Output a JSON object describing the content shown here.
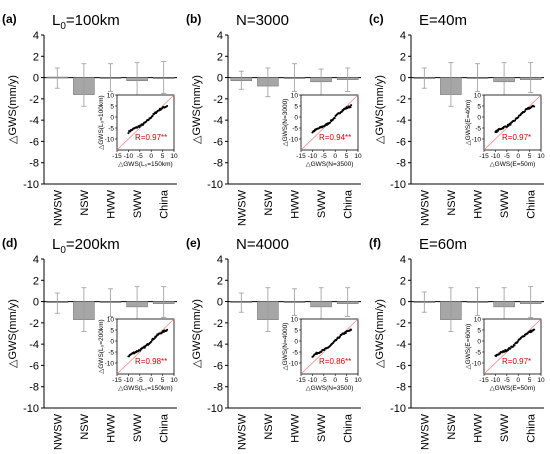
{
  "chart_data": [
    {
      "type": "bar",
      "panel_label": "(a)",
      "title": "L0=100km",
      "title_main": "L",
      "title_sub": "0",
      "title_rest": "=100km",
      "ylabel": "△GWS(mm/y)",
      "ylim": [
        -10,
        4
      ],
      "yticks": [
        -10,
        -8,
        -6,
        -4,
        -2,
        0,
        2,
        4
      ],
      "categories": [
        "NWSW",
        "NSW",
        "HWW",
        "SWW",
        "China"
      ],
      "values": [
        0.05,
        -1.6,
        -0.05,
        -0.3,
        -0.1
      ],
      "error_low": [
        -1.0,
        -2.7,
        -1.3,
        -2.5,
        -1.5
      ],
      "error_high": [
        0.9,
        1.3,
        1.3,
        1.4,
        1.5
      ],
      "inset": {
        "type": "scatter",
        "xlabel": "△GWS(L₀=150km)",
        "ylabel": "△GWS(L₀=100km)",
        "xticks": [
          -15,
          -10,
          -5,
          0,
          5,
          10
        ],
        "yticks": [
          -10,
          -5,
          0,
          5,
          10
        ],
        "xlim": [
          -15,
          10
        ],
        "ylim": [
          -15,
          10
        ],
        "annotation": "R=0.97**"
      }
    },
    {
      "type": "bar",
      "panel_label": "(b)",
      "title": "N=3000",
      "title_main": "N=3000",
      "title_sub": "",
      "title_rest": "",
      "ylabel": "△GWS(mm/y)",
      "ylim": [
        -10,
        4
      ],
      "yticks": [
        -10,
        -8,
        -6,
        -4,
        -2,
        0,
        2,
        4
      ],
      "categories": [
        "NWSW",
        "NSW",
        "HWW",
        "SWW",
        "China"
      ],
      "values": [
        -0.3,
        -0.8,
        -0.05,
        -0.4,
        -0.2
      ],
      "error_low": [
        -1.1,
        -1.8,
        -1.3,
        -2.8,
        -1.3
      ],
      "error_high": [
        0.6,
        0.9,
        1.3,
        0.8,
        0.9
      ],
      "inset": {
        "type": "scatter",
        "xlabel": "△GWS(N=3500)",
        "ylabel": "△GWS(N=3000)",
        "xticks": [
          -15,
          -10,
          -5,
          0,
          5,
          10
        ],
        "yticks": [
          -10,
          -5,
          0,
          5,
          10
        ],
        "xlim": [
          -15,
          10
        ],
        "ylim": [
          -15,
          10
        ],
        "annotation": "R=0.94**"
      }
    },
    {
      "type": "bar",
      "panel_label": "(c)",
      "title": "E=40m",
      "title_main": "E=40m",
      "title_sub": "",
      "title_rest": "",
      "ylabel": "△GWS(mm/y)",
      "ylim": [
        -10,
        4
      ],
      "yticks": [
        -10,
        -8,
        -6,
        -4,
        -2,
        0,
        2,
        4
      ],
      "categories": [
        "NWSW",
        "NSW",
        "HWW",
        "SWW",
        "China"
      ],
      "values": [
        0.0,
        -1.6,
        -0.05,
        -0.4,
        -0.2
      ],
      "error_low": [
        -1.0,
        -2.7,
        -1.3,
        -2.9,
        -1.4
      ],
      "error_high": [
        0.9,
        1.4,
        1.3,
        1.4,
        1.4
      ],
      "inset": {
        "type": "scatter",
        "xlabel": "△GWS(E=50m)",
        "ylabel": "△GWS(E=40m)",
        "xticks": [
          -15,
          -10,
          -5,
          0,
          5,
          10
        ],
        "yticks": [
          -10,
          -5,
          0,
          5,
          10
        ],
        "xlim": [
          -15,
          10
        ],
        "ylim": [
          -15,
          10
        ],
        "annotation": "R=0.97*"
      }
    },
    {
      "type": "bar",
      "panel_label": "(d)",
      "title": "L0=200km",
      "title_main": "L",
      "title_sub": "0",
      "title_rest": "=200km",
      "ylabel": "△GWS(mm/y)",
      "ylim": [
        -10,
        4
      ],
      "yticks": [
        -10,
        -8,
        -6,
        -4,
        -2,
        0,
        2,
        4
      ],
      "categories": [
        "NWSW",
        "NSW",
        "HWW",
        "SWW",
        "China"
      ],
      "values": [
        -0.1,
        -1.7,
        -0.1,
        -0.5,
        -0.2
      ],
      "error_low": [
        -1.1,
        -2.8,
        -1.4,
        -2.9,
        -1.5
      ],
      "error_high": [
        0.8,
        1.3,
        1.2,
        1.4,
        1.4
      ],
      "inset": {
        "type": "scatter",
        "xlabel": "△GWS(L₀=150km)",
        "ylabel": "△GWS(L₀=200km)",
        "xticks": [
          -15,
          -10,
          -5,
          0,
          5,
          10
        ],
        "yticks": [
          -10,
          -5,
          0,
          5,
          10
        ],
        "xlim": [
          -15,
          10
        ],
        "ylim": [
          -15,
          10
        ],
        "annotation": "R=0.98**"
      }
    },
    {
      "type": "bar",
      "panel_label": "(e)",
      "title": "N=4000",
      "title_main": "N=4000",
      "title_sub": "",
      "title_rest": "",
      "ylabel": "△GWS(mm/y)",
      "ylim": [
        -10,
        4
      ],
      "yticks": [
        -10,
        -8,
        -6,
        -4,
        -2,
        0,
        2,
        4
      ],
      "categories": [
        "NWSW",
        "NSW",
        "HWW",
        "SWW",
        "China"
      ],
      "values": [
        -0.05,
        -1.7,
        -0.1,
        -0.5,
        -0.2
      ],
      "error_low": [
        -1.0,
        -2.8,
        -1.3,
        -2.8,
        -1.4
      ],
      "error_high": [
        0.8,
        1.3,
        1.2,
        1.3,
        1.3
      ],
      "inset": {
        "type": "scatter",
        "xlabel": "△GWS(N=3500)",
        "ylabel": "△GWS(N=4000)",
        "xticks": [
          -15,
          -10,
          -5,
          0,
          5,
          10
        ],
        "yticks": [
          -10,
          -5,
          0,
          5,
          10
        ],
        "xlim": [
          -15,
          10
        ],
        "ylim": [
          -15,
          10
        ],
        "annotation": "R=0.86**"
      }
    },
    {
      "type": "bar",
      "panel_label": "(f)",
      "title": "E=60m",
      "title_main": "E=60m",
      "title_sub": "",
      "title_rest": "",
      "ylabel": "△GWS(mm/y)",
      "ylim": [
        -10,
        4
      ],
      "yticks": [
        -10,
        -8,
        -6,
        -4,
        -2,
        0,
        2,
        4
      ],
      "categories": [
        "NWSW",
        "NSW",
        "HWW",
        "SWW",
        "China"
      ],
      "values": [
        0.0,
        -1.7,
        -0.05,
        -0.5,
        -0.2
      ],
      "error_low": [
        -1.0,
        -2.8,
        -1.3,
        -2.9,
        -1.5
      ],
      "error_high": [
        0.9,
        1.3,
        1.3,
        1.3,
        1.4
      ],
      "inset": {
        "type": "scatter",
        "xlabel": "△GWS(E=50m)",
        "ylabel": "△GWS(E=60m)",
        "xticks": [
          -15,
          -10,
          -5,
          0,
          5,
          10
        ],
        "yticks": [
          -10,
          -5,
          0,
          5,
          10
        ],
        "xlim": [
          -15,
          10
        ],
        "ylim": [
          -15,
          10
        ],
        "annotation": "R=0.97*"
      }
    }
  ],
  "colors": {
    "bar": "#a6a6a6",
    "bar_edge": "#6e6e6e",
    "axis": "#000000",
    "error": "#999999",
    "scatter": "#000000",
    "diagonal": "#f08080",
    "annotation": "#e00000"
  }
}
